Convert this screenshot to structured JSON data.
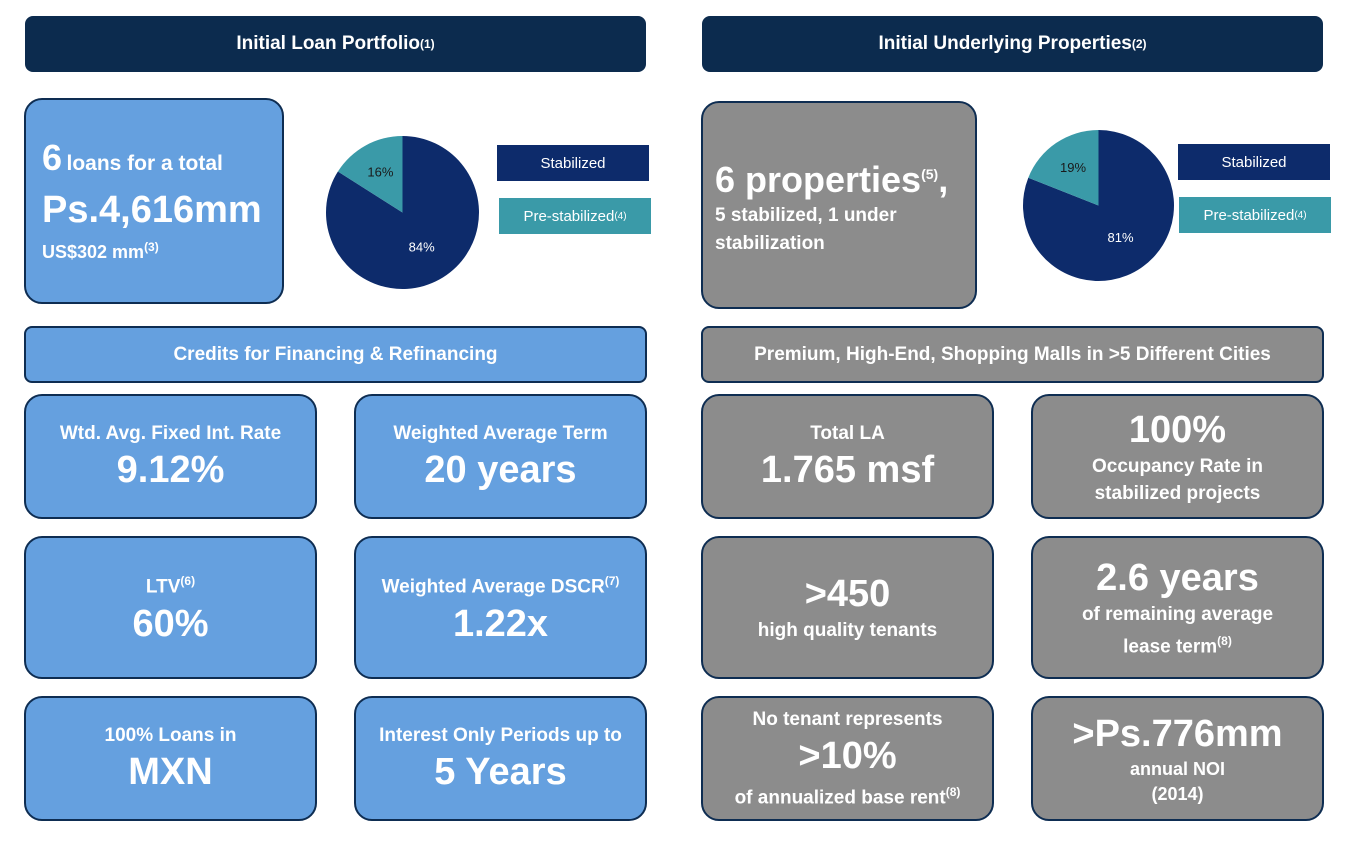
{
  "colors": {
    "header_bg": "#0c2b4e",
    "blue_box": "#65a0df",
    "gray_box": "#8c8c8c",
    "stabilized": "#0d2b6b",
    "pre_stabilized": "#3a9aa8"
  },
  "left": {
    "header": {
      "title": "Initial Loan Portfolio",
      "note": "(1)"
    },
    "summary": {
      "count": "6",
      "count_suffix": "loans for a total",
      "amount": "Ps.4,616mm",
      "usd": "US$302 mm",
      "usd_note": "(3)"
    },
    "bar": "Credits for Financing & Refinancing",
    "cards": [
      {
        "label": "Wtd. Avg. Fixed Int. Rate",
        "note": "",
        "value": "9.12%"
      },
      {
        "label": "Weighted Average Term",
        "note": "",
        "value": "20 years"
      },
      {
        "label": "LTV",
        "note": "(6)",
        "value": "60%"
      },
      {
        "label": "Weighted Average DSCR",
        "note": "(7)",
        "value": "1.22x"
      },
      {
        "label": "100% Loans in",
        "note": "",
        "value": "MXN"
      },
      {
        "label": "Interest Only Periods up to",
        "note": "",
        "value": "5 Years"
      }
    ]
  },
  "right": {
    "header": {
      "title": "Initial Underlying Properties",
      "note": "(2)"
    },
    "summary": {
      "count_text": "6 properties",
      "count_note": "(5)",
      "count_comma": ",",
      "detail": "5 stabilized, 1 under stabilization"
    },
    "bar": "Premium, High-End, Shopping Malls in >5 Different Cities",
    "cards": [
      {
        "top": "Total LA",
        "value": "1.765 msf",
        "bottom": "",
        "bottom_note": ""
      },
      {
        "top": "",
        "value": "100%",
        "bottom": "Occupancy Rate in stabilized projects",
        "bottom_note": ""
      },
      {
        "top": "",
        "value": ">450",
        "bottom": "high quality tenants",
        "bottom_note": ""
      },
      {
        "top": "",
        "value": "2.6 years",
        "bottom": "of remaining average lease term",
        "bottom_note": "(8)"
      },
      {
        "top": "No tenant represents",
        "value": ">10%",
        "bottom": "of annualized base rent",
        "bottom_note": "(8)"
      },
      {
        "top": "",
        "value": ">Ps.776mm",
        "bottom": "annual NOI (2014)",
        "bottom_note": ""
      }
    ]
  },
  "chart_data": [
    {
      "type": "pie",
      "categories": [
        "Stabilized",
        "Pre-stabilized"
      ],
      "values": [
        84,
        16
      ],
      "value_labels": [
        "84%",
        "16%"
      ],
      "legend_notes": [
        "",
        "(4)"
      ],
      "legend": "right"
    },
    {
      "type": "pie",
      "categories": [
        "Stabilized",
        "Pre-stabilized"
      ],
      "values": [
        81,
        19
      ],
      "value_labels": [
        "81%",
        "19%"
      ],
      "legend_notes": [
        "",
        "(4)"
      ],
      "legend": "right"
    }
  ]
}
